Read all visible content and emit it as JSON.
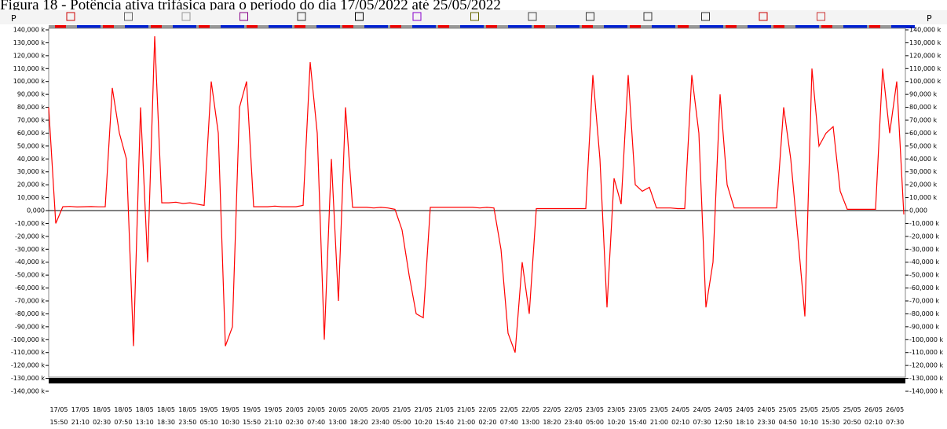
{
  "caption": "Figura 18 - Potência ativa trifásica para o período do dia 17/05/2022 até 25/05/2022",
  "toolbar": {
    "left_label": "P",
    "right_label": "P"
  },
  "chart_data": {
    "type": "line",
    "series": [
      {
        "color": "#ff0000",
        "values": [
          80000,
          -10000,
          3000,
          3200,
          2800,
          3000,
          3100,
          2900,
          3000,
          95000,
          60000,
          40000,
          -105000,
          80000,
          -40000,
          135000,
          6000,
          6000,
          6500,
          5500,
          6000,
          5000,
          4000,
          100000,
          60000,
          -105000,
          -90000,
          80000,
          100000,
          3000,
          3000,
          3000,
          3500,
          3000,
          3000,
          3000,
          4000,
          115000,
          60000,
          -100000,
          40000,
          -70000,
          80000,
          2500,
          2500,
          2500,
          2000,
          2500,
          2000,
          1000,
          -15000,
          -50000,
          -80000,
          -83000,
          2500,
          2500,
          2500,
          2500,
          2500,
          2500,
          2500,
          2000,
          2500,
          2000,
          -30000,
          -95000,
          -110000,
          -40000,
          -80000,
          1500,
          1500,
          1500,
          1500,
          1500,
          1500,
          1500,
          1500,
          105000,
          40000,
          -75000,
          25000,
          5000,
          105000,
          20000,
          15000,
          18000,
          2000,
          2000,
          2000,
          1500,
          1500,
          105000,
          60000,
          -75000,
          -40000,
          90000,
          20000,
          2000,
          2000,
          2000,
          2000,
          2000,
          2000,
          2000,
          80000,
          40000,
          -20000,
          -82000,
          110000,
          50000,
          60000,
          65000,
          15000,
          1000,
          1000,
          1000,
          1000,
          1000,
          110000,
          60000,
          100000,
          -3000
        ]
      }
    ],
    "ylim": [
      -140000,
      140000
    ],
    "yticks": [
      {
        "value": 140000,
        "label": "140,000 k"
      },
      {
        "value": 130000,
        "label": "130,000 k"
      },
      {
        "value": 120000,
        "label": "120,000 k"
      },
      {
        "value": 110000,
        "label": "110,000 k"
      },
      {
        "value": 100000,
        "label": "100,000 k"
      },
      {
        "value": 90000,
        "label": "90,000 k"
      },
      {
        "value": 80000,
        "label": "80,000 k"
      },
      {
        "value": 70000,
        "label": "70,000 k"
      },
      {
        "value": 60000,
        "label": "60,000 k"
      },
      {
        "value": 50000,
        "label": "50,000 k"
      },
      {
        "value": 40000,
        "label": "40,000 k"
      },
      {
        "value": 30000,
        "label": "30,000 k"
      },
      {
        "value": 20000,
        "label": "20,000 k"
      },
      {
        "value": 10000,
        "label": "10,000 k"
      },
      {
        "value": 0,
        "label": "0,000"
      },
      {
        "value": -10000,
        "label": "-10,000 k"
      },
      {
        "value": -20000,
        "label": "-20,000 k"
      },
      {
        "value": -30000,
        "label": "-30,000 k"
      },
      {
        "value": -40000,
        "label": "-40,000 k"
      },
      {
        "value": -50000,
        "label": "-50,000 k"
      },
      {
        "value": -60000,
        "label": "-60,000 k"
      },
      {
        "value": -70000,
        "label": "-70,000 k"
      },
      {
        "value": -80000,
        "label": "-80,000 k"
      },
      {
        "value": -90000,
        "label": "-90,000 k"
      },
      {
        "value": -100000,
        "label": "-100,000 k"
      },
      {
        "value": -110000,
        "label": "-110,000 k"
      },
      {
        "value": -120000,
        "label": "-120,000 k"
      },
      {
        "value": -130000,
        "label": "-130,000 k"
      },
      {
        "value": -140000,
        "label": "-140,000 k"
      }
    ],
    "xtick_dates": [
      "17/05",
      "17/05",
      "18/05",
      "18/05",
      "18/05",
      "18/05",
      "18/05",
      "19/05",
      "19/05",
      "19/05",
      "19/05",
      "20/05",
      "20/05",
      "20/05",
      "20/05",
      "20/05",
      "21/05",
      "21/05",
      "21/05",
      "21/05",
      "22/05",
      "22/05",
      "22/05",
      "22/05",
      "22/05",
      "23/05",
      "23/05",
      "23/05",
      "23/05",
      "24/05",
      "24/05",
      "24/05",
      "24/05",
      "24/05",
      "25/05",
      "25/05",
      "25/05",
      "25/05",
      "26/05",
      "26/05"
    ],
    "xtick_times": [
      "15:50",
      "21:10",
      "02:30",
      "07:50",
      "13:10",
      "18:30",
      "23:50",
      "05:10",
      "10:30",
      "15:50",
      "21:10",
      "02:30",
      "07:40",
      "13:00",
      "18:20",
      "23:40",
      "05:00",
      "10:20",
      "15:40",
      "21:00",
      "02:20",
      "07:40",
      "13:00",
      "18:20",
      "23:40",
      "05:00",
      "10:20",
      "15:40",
      "21:00",
      "02:10",
      "07:30",
      "12:50",
      "18:10",
      "23:30",
      "04:50",
      "10:10",
      "15:30",
      "20:50",
      "02:10",
      "07:30"
    ]
  }
}
